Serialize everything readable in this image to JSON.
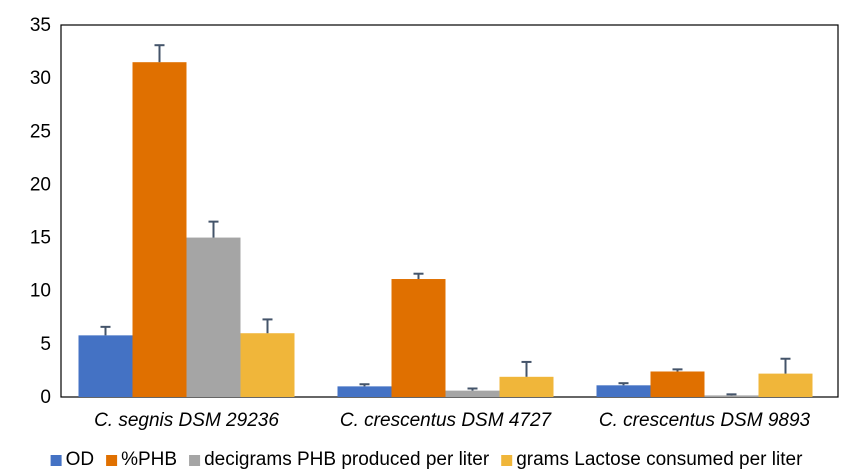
{
  "chart_data": {
    "type": "bar",
    "categories": [
      "C. segnis DSM 29236",
      "C. crescentus DSM 4727",
      "C. crescentus DSM 9893"
    ],
    "series": [
      {
        "name": "OD",
        "color": "#4472C4",
        "values": [
          5.8,
          1.0,
          1.1
        ],
        "errors": [
          0.8,
          0.2,
          0.2
        ]
      },
      {
        "name": "%PHB",
        "color": "#E07000",
        "values": [
          31.5,
          11.1,
          2.4
        ],
        "errors": [
          1.6,
          0.5,
          0.2
        ]
      },
      {
        "name": "decigrams PHB produced per liter",
        "color": "#A5A5A5",
        "values": [
          15.0,
          0.6,
          0.15
        ],
        "errors": [
          1.5,
          0.2,
          0.1
        ]
      },
      {
        "name": "grams Lactose consumed per liter",
        "color": "#F0B63A",
        "values": [
          6.0,
          1.9,
          2.2
        ],
        "errors": [
          1.3,
          1.4,
          1.4
        ]
      }
    ],
    "ylim": [
      0,
      35
    ],
    "yticks": [
      0,
      5,
      10,
      15,
      20,
      25,
      30,
      35
    ],
    "grid": false,
    "legend_position": "bottom",
    "error_bar_color": "#44546A"
  }
}
